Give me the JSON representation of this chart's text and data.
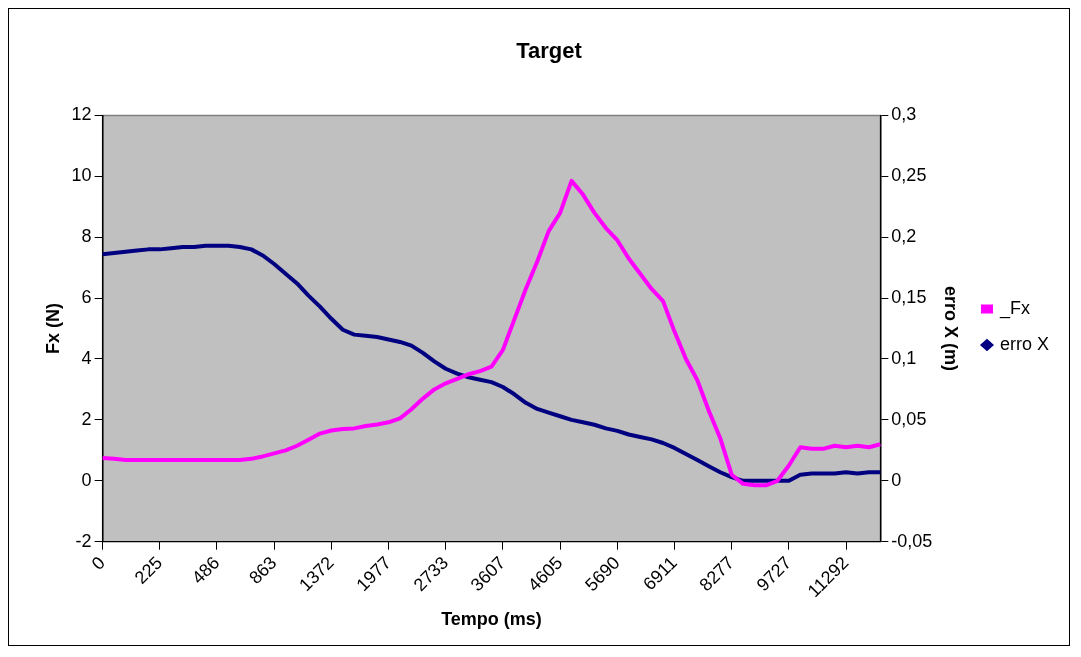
{
  "chart_data": {
    "type": "line",
    "title": "Target",
    "xlabel": "Tempo (ms)",
    "ylabel": "Fx (N)",
    "y2label": "erro X (m)",
    "categories": [
      "0",
      null,
      null,
      null,
      null,
      "225",
      null,
      null,
      null,
      null,
      "486",
      null,
      null,
      null,
      null,
      "863",
      null,
      null,
      null,
      null,
      "1372",
      null,
      null,
      null,
      null,
      "1977",
      null,
      null,
      null,
      null,
      "2733",
      null,
      null,
      null,
      null,
      "3607",
      null,
      null,
      null,
      null,
      "4605",
      null,
      null,
      null,
      null,
      "5690",
      null,
      null,
      null,
      null,
      "6911",
      null,
      null,
      null,
      null,
      "8277",
      null,
      null,
      null,
      null,
      "9727",
      null,
      null,
      null,
      null,
      "11292",
      null,
      null,
      null
    ],
    "series": [
      {
        "name": "_Fx",
        "color": "#ff00ff",
        "values": [
          0.75,
          0.72,
          0.68,
          0.68,
          0.68,
          0.68,
          0.68,
          0.68,
          0.68,
          0.68,
          0.68,
          0.68,
          0.68,
          0.72,
          0.8,
          0.9,
          1.0,
          1.15,
          1.35,
          1.55,
          1.65,
          1.7,
          1.72,
          1.8,
          1.85,
          1.92,
          2.05,
          2.35,
          2.7,
          3.0,
          3.2,
          3.35,
          3.5,
          3.6,
          3.75,
          4.3,
          5.3,
          6.3,
          7.2,
          8.2,
          8.8,
          9.85,
          9.4,
          8.8,
          8.3,
          7.9,
          7.3,
          6.8,
          6.3,
          5.9,
          4.9,
          4.0,
          3.3,
          2.3,
          1.4,
          0.2,
          -0.1,
          -0.15,
          -0.15,
          0.0,
          0.5,
          1.1,
          1.05,
          1.05,
          1.15,
          1.1,
          1.15,
          1.1,
          1.2
        ]
      },
      {
        "name": "erro X",
        "color": "#000080",
        "axis": "y2",
        "values": [
          0.186,
          0.187,
          0.188,
          0.189,
          0.19,
          0.19,
          0.191,
          0.192,
          0.192,
          0.193,
          0.193,
          0.193,
          0.192,
          0.19,
          0.185,
          0.178,
          0.17,
          0.162,
          0.152,
          0.143,
          0.133,
          0.124,
          0.12,
          0.119,
          0.118,
          0.116,
          0.114,
          0.111,
          0.105,
          0.098,
          0.092,
          0.088,
          0.085,
          0.083,
          0.081,
          0.077,
          0.071,
          0.064,
          0.059,
          0.056,
          0.053,
          0.05,
          0.048,
          0.046,
          0.043,
          0.041,
          0.038,
          0.036,
          0.034,
          0.031,
          0.027,
          0.022,
          0.017,
          0.012,
          0.007,
          0.003,
          0.0,
          0.0,
          0.0,
          0.0,
          0.0,
          0.005,
          0.006,
          0.006,
          0.006,
          0.007,
          0.006,
          0.007,
          0.007
        ]
      }
    ],
    "ylim": [
      -2,
      12
    ],
    "yticks": [
      -2,
      0,
      2,
      4,
      6,
      8,
      10,
      12
    ],
    "y2lim": [
      -0.05,
      0.3
    ],
    "y2ticks": [
      {
        "value": -0.05,
        "label": "-0,05"
      },
      0,
      {
        "value": 0.05,
        "label": "0,05"
      },
      {
        "value": 0.1,
        "label": "0,1"
      },
      {
        "value": 0.15,
        "label": "0,15"
      },
      {
        "value": 0.2,
        "label": "0,2"
      },
      {
        "value": 0.25,
        "label": "0,25"
      },
      {
        "value": 0.3,
        "label": "0,3"
      }
    ],
    "grid": false,
    "legend": "right",
    "line_style": "solid"
  }
}
